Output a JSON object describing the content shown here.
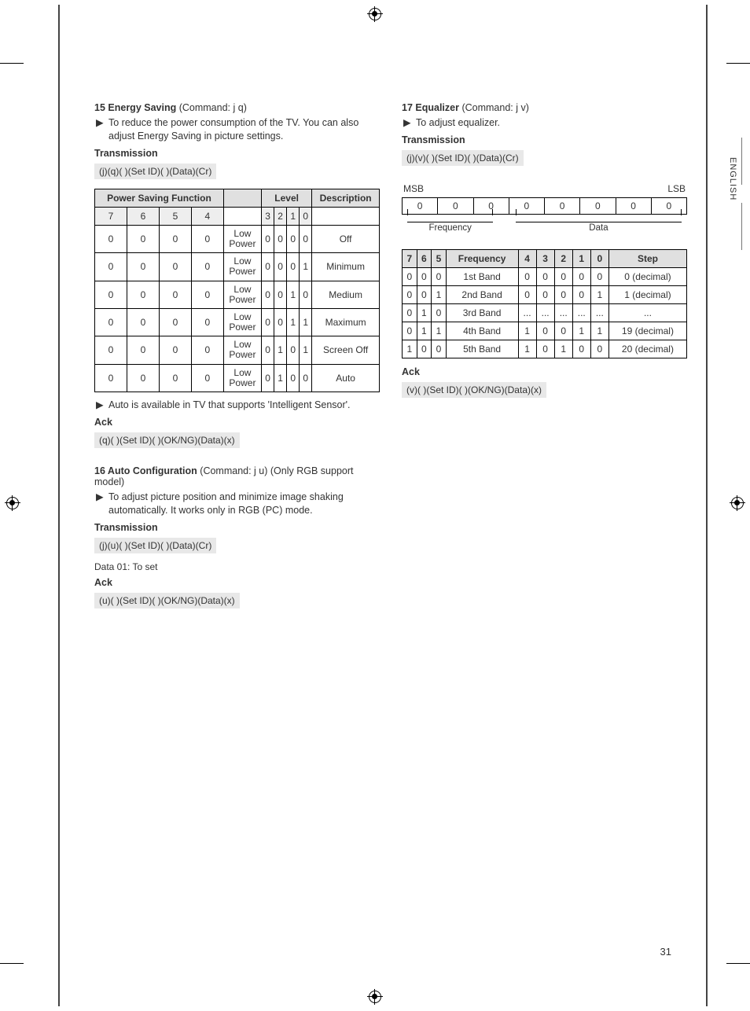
{
  "page_number": "31",
  "side_lang": "ENGLISH",
  "left": {
    "s15": {
      "num": "15",
      "title": "Energy Saving",
      "cmd": "(Command: j q)",
      "desc": "To reduce the power consumption of the TV. You can also adjust Energy Saving in picture settings.",
      "trans_label": "Transmission",
      "trans_code": "(j)(q)( )(Set ID)( )(Data)(Cr)",
      "table": {
        "hdr_pwr": "Power Saving Function",
        "hdr_level": "Level",
        "hdr_desc": "Description",
        "bits_hdr": [
          "7",
          "6",
          "5",
          "4",
          "",
          "3",
          "2",
          "1",
          "0"
        ],
        "rows": [
          {
            "pwr": [
              "0",
              "0",
              "0",
              "0"
            ],
            "mid": "Low Power",
            "lvl": [
              "0",
              "0",
              "0",
              "0"
            ],
            "desc": "Off"
          },
          {
            "pwr": [
              "0",
              "0",
              "0",
              "0"
            ],
            "mid": "Low Power",
            "lvl": [
              "0",
              "0",
              "0",
              "1"
            ],
            "desc": "Minimum"
          },
          {
            "pwr": [
              "0",
              "0",
              "0",
              "0"
            ],
            "mid": "Low Power",
            "lvl": [
              "0",
              "0",
              "1",
              "0"
            ],
            "desc": "Medium"
          },
          {
            "pwr": [
              "0",
              "0",
              "0",
              "0"
            ],
            "mid": "Low Power",
            "lvl": [
              "0",
              "0",
              "1",
              "1"
            ],
            "desc": "Maximum"
          },
          {
            "pwr": [
              "0",
              "0",
              "0",
              "0"
            ],
            "mid": "Low Power",
            "lvl": [
              "0",
              "1",
              "0",
              "1"
            ],
            "desc": "Screen Off"
          },
          {
            "pwr": [
              "0",
              "0",
              "0",
              "0"
            ],
            "mid": "Low Power",
            "lvl": [
              "0",
              "1",
              "0",
              "0"
            ],
            "desc": "Auto"
          }
        ]
      },
      "note": "Auto is available in TV that supports 'Intelligent Sensor'.",
      "ack_label": "Ack",
      "ack_code": "(q)( )(Set ID)( )(OK/NG)(Data)(x)"
    },
    "s16": {
      "num": "16",
      "title": "Auto Configuration",
      "cmd": "(Command: j u) (Only RGB support model)",
      "desc": "To adjust picture position and minimize image shaking automatically. It works only in RGB (PC) mode.",
      "trans_label": "Transmission",
      "trans_code": "(j)(u)( )(Set ID)( )(Data)(Cr)",
      "data01": "Data 01: To set",
      "ack_label": "Ack",
      "ack_code": "(u)( )(Set ID)( )(OK/NG)(Data)(x)"
    }
  },
  "right": {
    "s17": {
      "num": "17",
      "title": "Equalizer",
      "cmd": "(Command: j v)",
      "desc": "To adjust equalizer.",
      "trans_label": "Transmission",
      "trans_code": "(j)(v)( )(Set ID)( )(Data)(Cr)",
      "msb": "MSB",
      "lsb": "LSB",
      "byte_cells": [
        "0",
        "0",
        "0",
        "0",
        "0",
        "0",
        "0",
        "0"
      ],
      "bracket_freq": "Frequency",
      "bracket_data": "Data",
      "table": {
        "hdr": [
          "7",
          "6",
          "5",
          "Frequency",
          "4",
          "3",
          "2",
          "1",
          "0",
          "Step"
        ],
        "rows": [
          [
            "0",
            "0",
            "0",
            "1st Band",
            "0",
            "0",
            "0",
            "0",
            "0",
            "0 (decimal)"
          ],
          [
            "0",
            "0",
            "1",
            "2nd Band",
            "0",
            "0",
            "0",
            "0",
            "1",
            "1 (decimal)"
          ],
          [
            "0",
            "1",
            "0",
            "3rd Band",
            "...",
            "...",
            "...",
            "...",
            "...",
            "..."
          ],
          [
            "0",
            "1",
            "1",
            "4th Band",
            "1",
            "0",
            "0",
            "1",
            "1",
            "19 (decimal)"
          ],
          [
            "1",
            "0",
            "0",
            "5th Band",
            "1",
            "0",
            "1",
            "0",
            "0",
            "20 (decimal)"
          ]
        ]
      },
      "ack_label": "Ack",
      "ack_code": "(v)( )(Set ID)( )(OK/NG)(Data)(x)"
    }
  }
}
